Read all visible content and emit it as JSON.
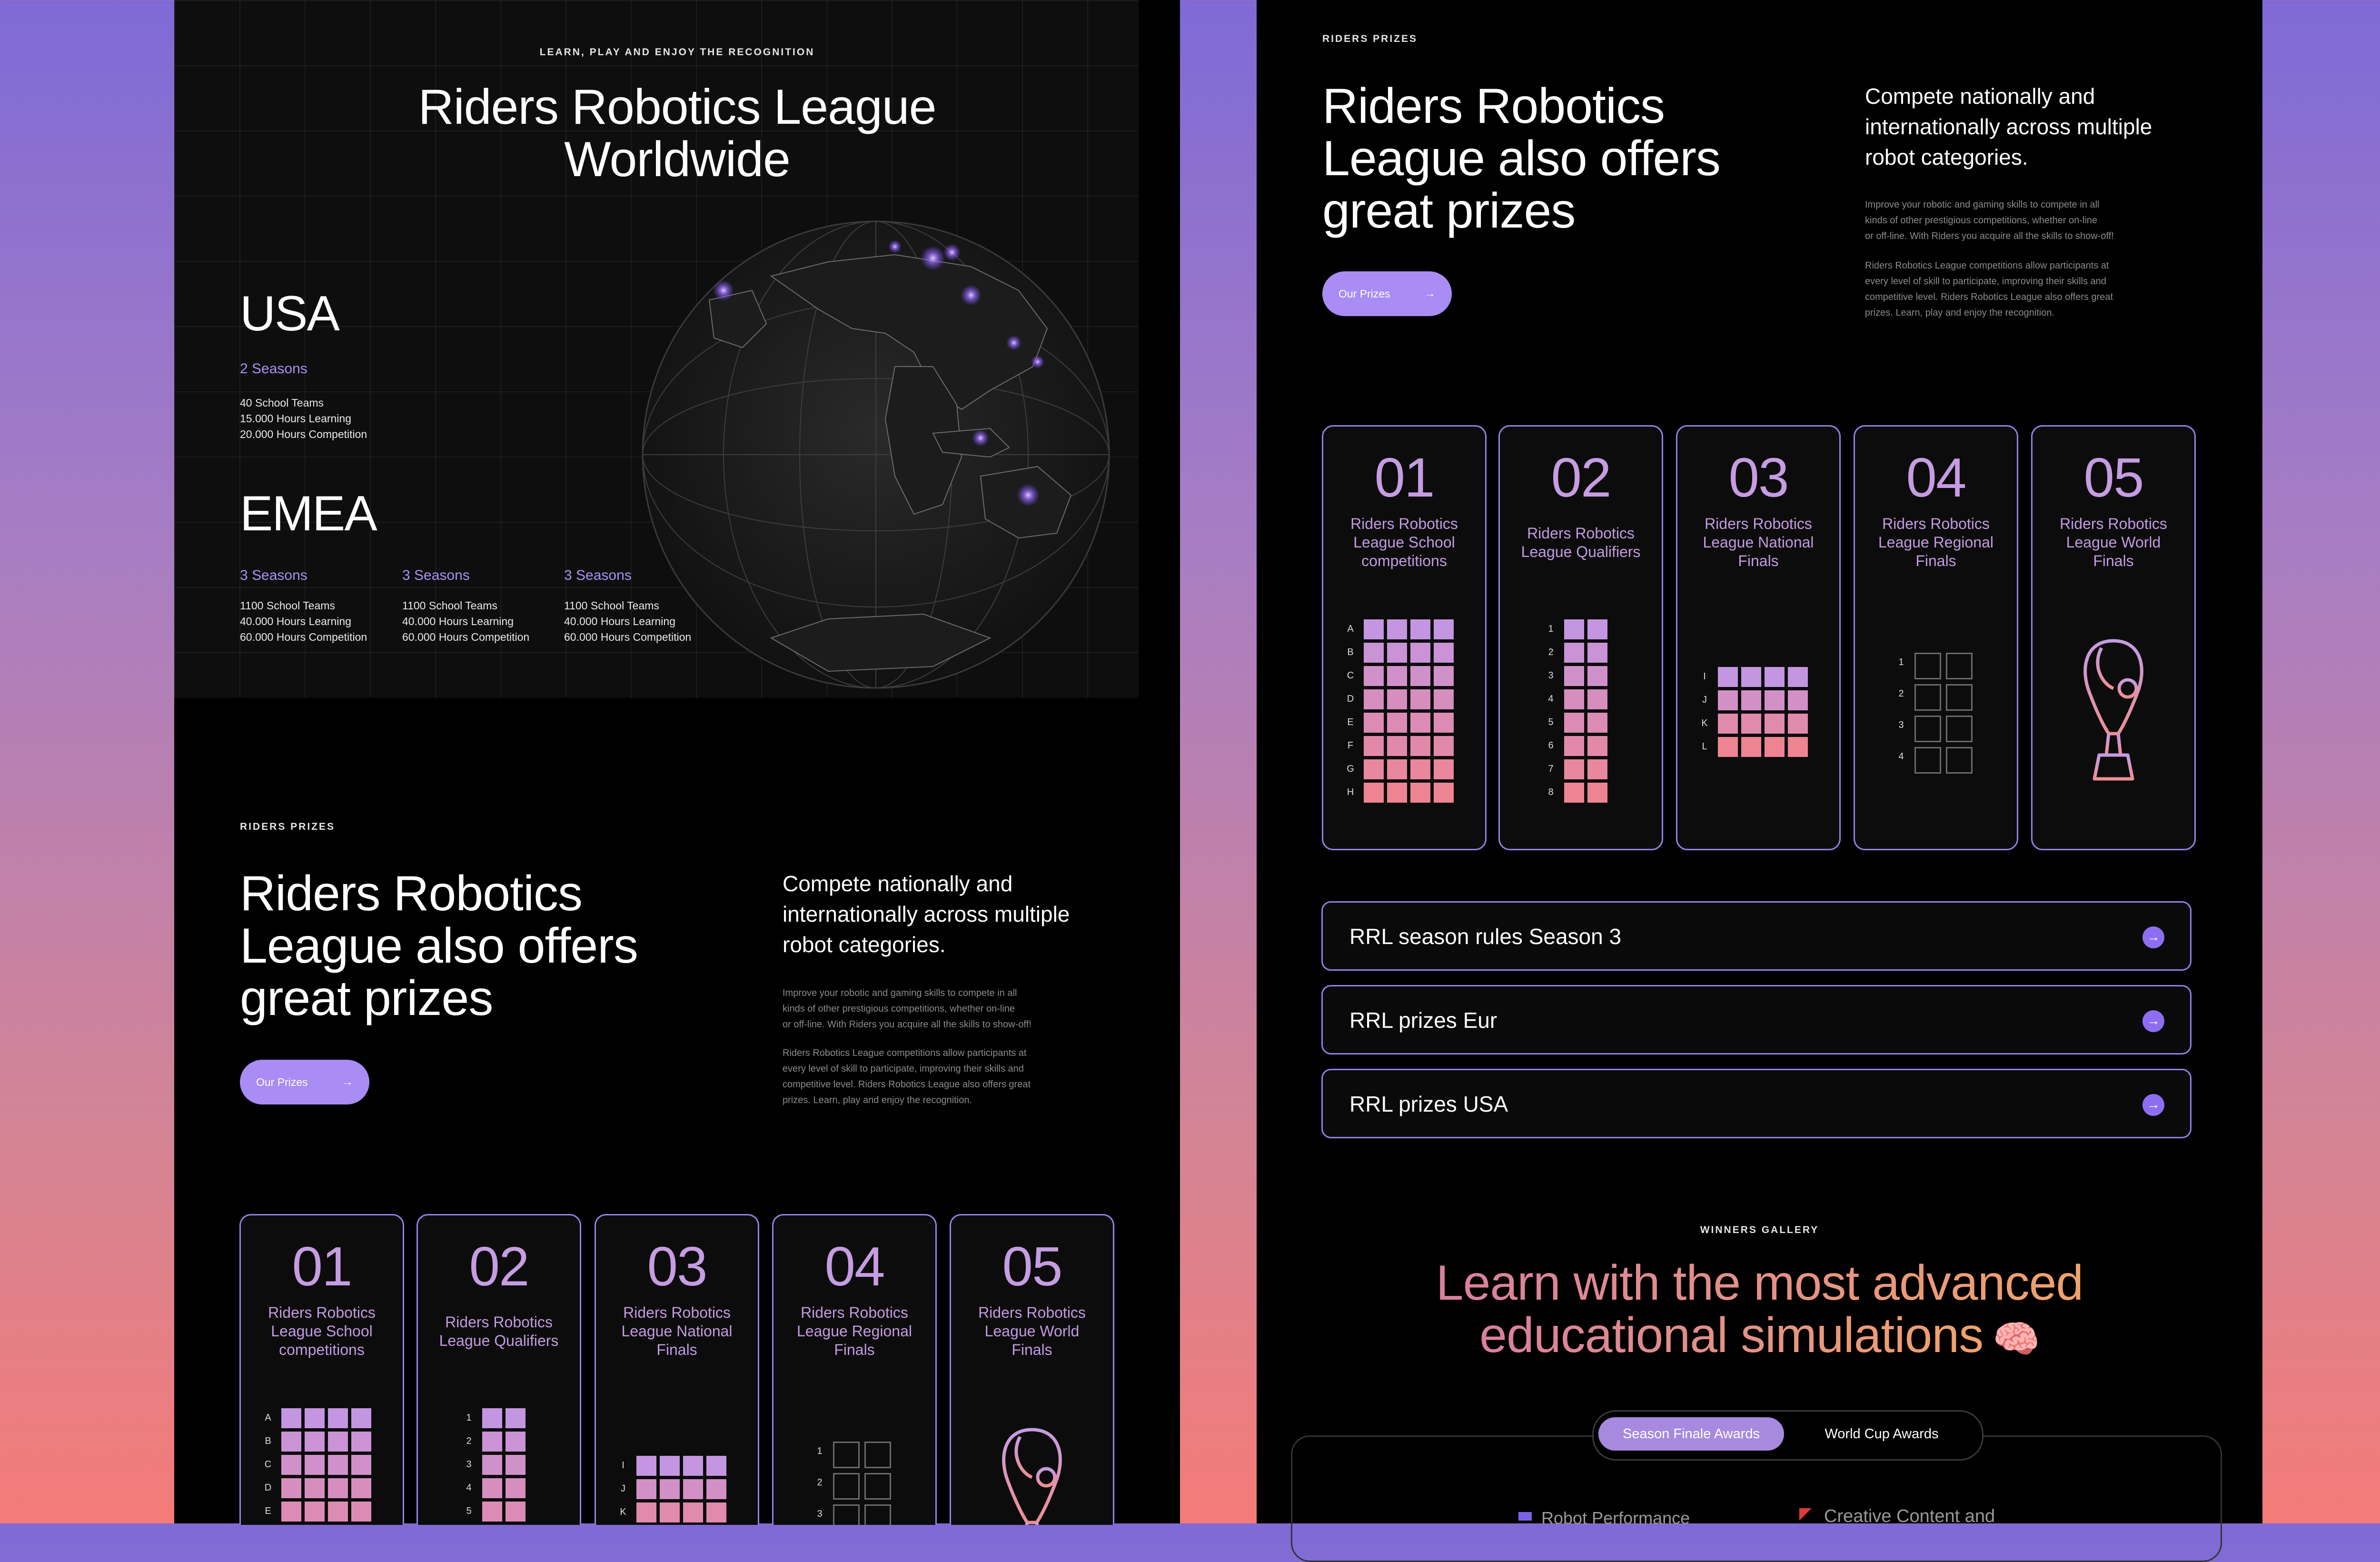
{
  "worldwide": {
    "eyebrow": "LEARN, PLAY AND ENJOY THE RECOGNITION",
    "title_line1": "Riders Robotics League",
    "title_line2": "Worldwide",
    "usa": {
      "region": "USA",
      "seasons": "2 Seasons",
      "stats": [
        "40 School Teams",
        "15.000 Hours Learning",
        "20.000 Hours Competition"
      ]
    },
    "emea": {
      "region": "EMEA",
      "columns": [
        {
          "seasons": "3 Seasons",
          "stats": [
            "1100 School Teams",
            "40.000 Hours Learning",
            "60.000 Hours Competition"
          ]
        },
        {
          "seasons": "3 Seasons",
          "stats": [
            "1100 School Teams",
            "40.000 Hours Learning",
            "60.000 Hours Competition"
          ]
        },
        {
          "seasons": "3 Seasons",
          "stats": [
            "1100 School Teams",
            "40.000 Hours Learning",
            "60.000 Hours Competition"
          ]
        }
      ]
    }
  },
  "prizes": {
    "eyebrow": "RIDERS PRIZES",
    "title_line1": "Riders Robotics",
    "title_line2": "League also offers",
    "title_line3": "great prizes",
    "lead_line1": "Compete nationally and",
    "lead_line2": "internationally across multiple",
    "lead_line3": "robot categories.",
    "p1_line1": "Improve your robotic and gaming skills to compete in all",
    "p1_line2": "kinds of other prestigious competitions, whether on-line",
    "p1_line3": "or off-line. With Riders you acquire all the skills to show-off!",
    "p2_line1": "Riders Robotics League competitions allow participants at",
    "p2_line2": "every level of skill to participate, improving their skills and",
    "p2_line3": "competitive level. Riders Robotics League also offers great",
    "p2_line4": "prizes. Learn, play and enjoy the recognition.",
    "button_label": "Our Prizes",
    "cards": [
      {
        "num": "01",
        "name": [
          "Riders Robotics",
          "League School",
          "competitions"
        ],
        "rows": [
          "A",
          "B",
          "C",
          "D",
          "E",
          "F",
          "G",
          "H"
        ]
      },
      {
        "num": "02",
        "name": [
          "Riders Robotics",
          "League Qualifiers"
        ],
        "rows": [
          "1",
          "2",
          "3",
          "4",
          "5",
          "6",
          "7",
          "8"
        ]
      },
      {
        "num": "03",
        "name": [
          "Riders Robotics",
          "League National",
          "Finals"
        ],
        "rows": [
          "I",
          "J",
          "K",
          "L"
        ]
      },
      {
        "num": "04",
        "name": [
          "Riders Robotics",
          "League Regional",
          "Finals"
        ],
        "rows": [
          "1",
          "2",
          "3",
          "4"
        ]
      },
      {
        "num": "05",
        "name": [
          "Riders Robotics",
          "League World",
          "Finals"
        ],
        "rows": []
      }
    ]
  },
  "accordion": [
    {
      "label": "RRL season rules Season 3"
    },
    {
      "label": "RRL prizes Eur"
    },
    {
      "label": "RRL prizes USA"
    }
  ],
  "gallery": {
    "eyebrow": "WINNERS GALLERY",
    "title_line1": "Learn with the most advanced",
    "title_line2": "educational simulations",
    "tabs": [
      "Season Finale Awards",
      "World Cup Awards"
    ],
    "active_tab": "Season Finale Awards",
    "peek_left": "Robot Performance",
    "peek_right": "Creative Content and"
  },
  "colors": {
    "accent": "#a98cf4",
    "card_border": "#8f84e6",
    "number": "#c69ce2",
    "seasons": "#a991f3"
  }
}
